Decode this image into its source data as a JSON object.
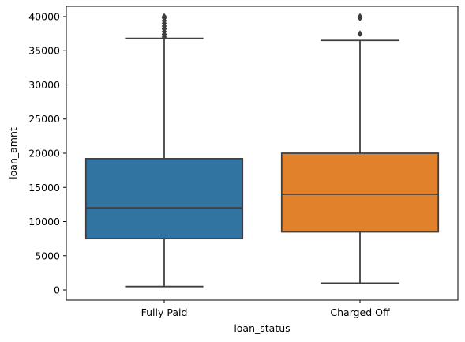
{
  "chart_data": {
    "type": "box",
    "xlabel": "loan_status",
    "ylabel": "loan_amnt",
    "ylim": [
      -1500,
      41500
    ],
    "yticks": [
      0,
      5000,
      10000,
      15000,
      20000,
      25000,
      30000,
      35000,
      40000
    ],
    "grid": false,
    "categories": [
      "Fully Paid",
      "Charged Off"
    ],
    "boxes": [
      {
        "category": "Fully Paid",
        "color": "#3274a1",
        "whisker_low": 500,
        "q1": 7500,
        "median": 12000,
        "q3": 19200,
        "whisker_high": 36800,
        "outliers": [
          37000,
          37400,
          37800,
          38200,
          38600,
          39000,
          39400,
          39800,
          40000
        ]
      },
      {
        "category": "Charged Off",
        "color": "#e1812c",
        "whisker_low": 1000,
        "q1": 8500,
        "median": 14000,
        "q3": 20000,
        "whisker_high": 36500,
        "outliers": [
          37500,
          39800,
          40000
        ]
      }
    ]
  },
  "style": {
    "line_color": "#3f3f3f",
    "axis_color": "#000000"
  }
}
